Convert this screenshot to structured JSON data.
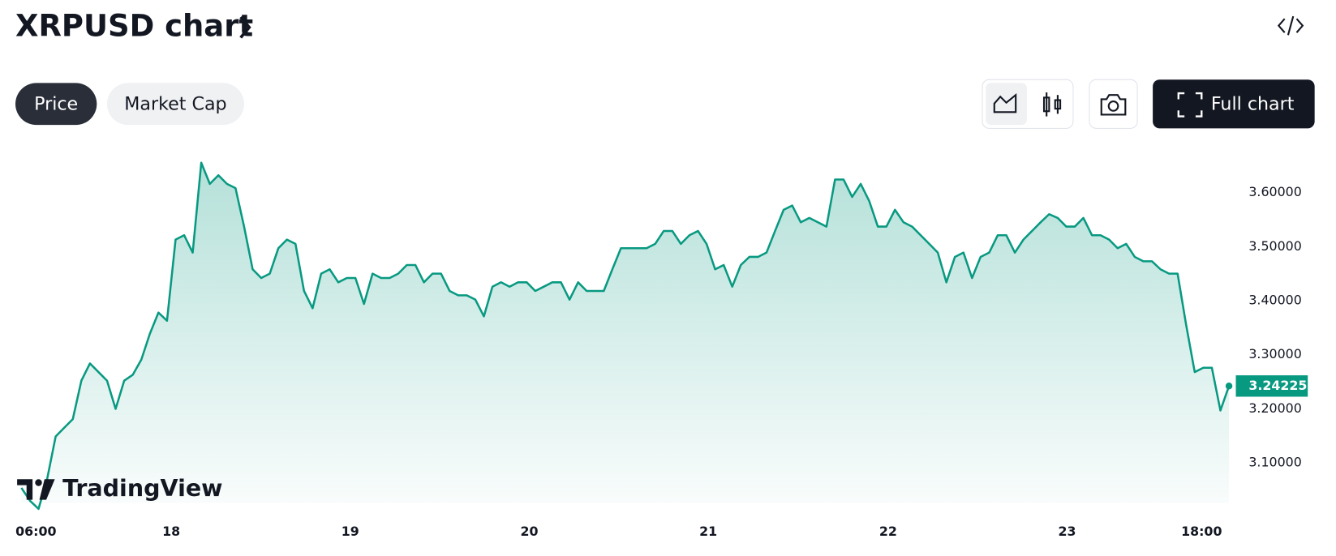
{
  "ui": {
    "tabs": [
      "Price",
      "Market Cap"
    ],
    "full_chart": "Full chart",
    "watermark": "TradingView"
  },
  "chart_data": {
    "type": "area",
    "title": "XRPUSD chart",
    "series": [
      {
        "name": "XRPUSD",
        "color": "#089981",
        "values": [
          3.054,
          3.03,
          3.015,
          3.07,
          3.149,
          3.165,
          3.181,
          3.252,
          3.284,
          3.268,
          3.252,
          3.2,
          3.252,
          3.263,
          3.291,
          3.339,
          3.378,
          3.363,
          3.513,
          3.521,
          3.489,
          3.655,
          3.616,
          3.632,
          3.616,
          3.608,
          3.537,
          3.458,
          3.442,
          3.45,
          3.497,
          3.513,
          3.505,
          3.418,
          3.386,
          3.45,
          3.458,
          3.434,
          3.442,
          3.442,
          3.394,
          3.45,
          3.442,
          3.442,
          3.45,
          3.466,
          3.466,
          3.434,
          3.45,
          3.45,
          3.418,
          3.41,
          3.41,
          3.402,
          3.371,
          3.426,
          3.434,
          3.426,
          3.434,
          3.434,
          3.418,
          3.426,
          3.434,
          3.434,
          3.402,
          3.434,
          3.418,
          3.418,
          3.418,
          3.458,
          3.497,
          3.497,
          3.497,
          3.497,
          3.505,
          3.529,
          3.529,
          3.505,
          3.521,
          3.529,
          3.505,
          3.458,
          3.466,
          3.426,
          3.466,
          3.481,
          3.481,
          3.489,
          3.529,
          3.568,
          3.576,
          3.545,
          3.553,
          3.545,
          3.537,
          3.624,
          3.624,
          3.592,
          3.616,
          3.584,
          3.537,
          3.537,
          3.568,
          3.545,
          3.537,
          3.521,
          3.505,
          3.489,
          3.434,
          3.481,
          3.489,
          3.442,
          3.481,
          3.489,
          3.521,
          3.521,
          3.489,
          3.513,
          3.529,
          3.545,
          3.56,
          3.553,
          3.537,
          3.537,
          3.553,
          3.521,
          3.521,
          3.513,
          3.497,
          3.505,
          3.481,
          3.473,
          3.473,
          3.458,
          3.45,
          3.45,
          3.355,
          3.268,
          3.276,
          3.276,
          3.197,
          3.24225
        ]
      }
    ],
    "xlim": [
      0,
      141
    ],
    "xticks": [
      {
        "value": 1.7,
        "label": "06:00"
      },
      {
        "value": 17.5,
        "label": "18"
      },
      {
        "value": 38.4,
        "label": "19"
      },
      {
        "value": 59.3,
        "label": "20"
      },
      {
        "value": 80.2,
        "label": "21"
      },
      {
        "value": 101.2,
        "label": "22"
      },
      {
        "value": 122.1,
        "label": "23"
      },
      {
        "value": 137.8,
        "label": "18:00"
      }
    ],
    "ylim": [
      3.0,
      3.7
    ],
    "yticks": [
      {
        "value": 3.1,
        "label": "3.10000"
      },
      {
        "value": 3.2,
        "label": "3.20000"
      },
      {
        "value": 3.3,
        "label": "3.30000"
      },
      {
        "value": 3.4,
        "label": "3.40000"
      },
      {
        "value": 3.5,
        "label": "3.50000"
      },
      {
        "value": 3.6,
        "label": "3.60000"
      }
    ]
  }
}
